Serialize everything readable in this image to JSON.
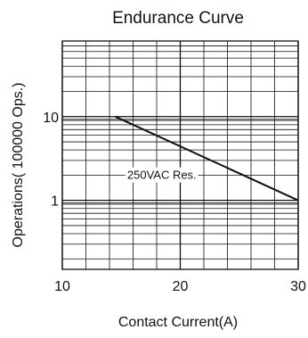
{
  "chart_data": {
    "type": "line",
    "title": "Endurance Curve",
    "xlabel": "Contact Current(A)",
    "ylabel": "Operations( 100000  Ops.)",
    "xlim": [
      10,
      30
    ],
    "ylim": [
      0.15,
      80
    ],
    "yscale": "log",
    "grid": true,
    "x_ticks": [
      10,
      20,
      30
    ],
    "x_tick_labels": [
      "10",
      "20",
      "30"
    ],
    "y_ticks": [
      1,
      10
    ],
    "y_tick_labels": [
      "1",
      "10"
    ],
    "series": [
      {
        "x": [
          14.5,
          30
        ],
        "y": [
          10,
          1
        ]
      }
    ],
    "annotations": [
      {
        "text": "250VAC Res.",
        "x": 15.5,
        "y": 1.8
      }
    ],
    "colors": {
      "line": "#111111",
      "grid": "#111111"
    }
  }
}
